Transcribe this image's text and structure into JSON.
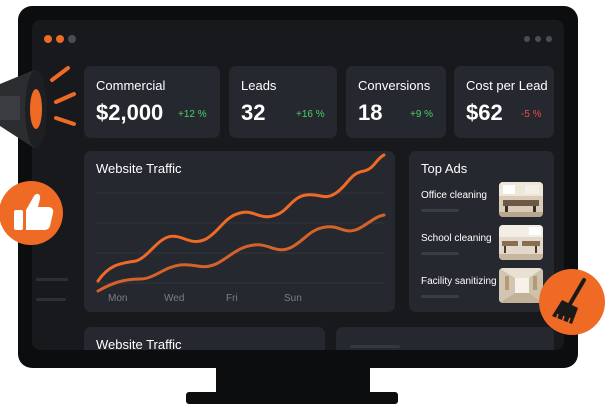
{
  "kpis": [
    {
      "label": "Commercial",
      "value": "$2,000",
      "change": "+12 %",
      "trend": "up"
    },
    {
      "label": "Leads",
      "value": "32",
      "change": "+16 %",
      "trend": "up"
    },
    {
      "label": "Conversions",
      "value": "18",
      "change": "+9 %",
      "trend": "up"
    },
    {
      "label": "Cost per Lead",
      "value": "$62",
      "change": "-5 %",
      "trend": "down"
    }
  ],
  "traffic": {
    "title": "Website Traffic",
    "days": [
      "Mon",
      "Wed",
      "Fri",
      "Sun"
    ]
  },
  "top_ads": {
    "title": "Top Ads",
    "items": [
      {
        "label": "Office cleaning",
        "icon": "office-photo"
      },
      {
        "label": "School cleaning",
        "icon": "classroom-photo"
      },
      {
        "label": "Facility sanitizing",
        "icon": "hallway-photo"
      }
    ]
  },
  "bottom": {
    "title": "Website Traffic"
  },
  "icons": {
    "megaphone": "megaphone-icon",
    "thumbs_up": "thumbs-up-icon",
    "broom": "broom-icon"
  },
  "colors": {
    "accent": "#ee6a25",
    "positive": "#4ccf6a",
    "negative": "#f04a4a",
    "panel": "#25282e",
    "screen": "#17191d",
    "bezel": "#0c0d0f"
  }
}
